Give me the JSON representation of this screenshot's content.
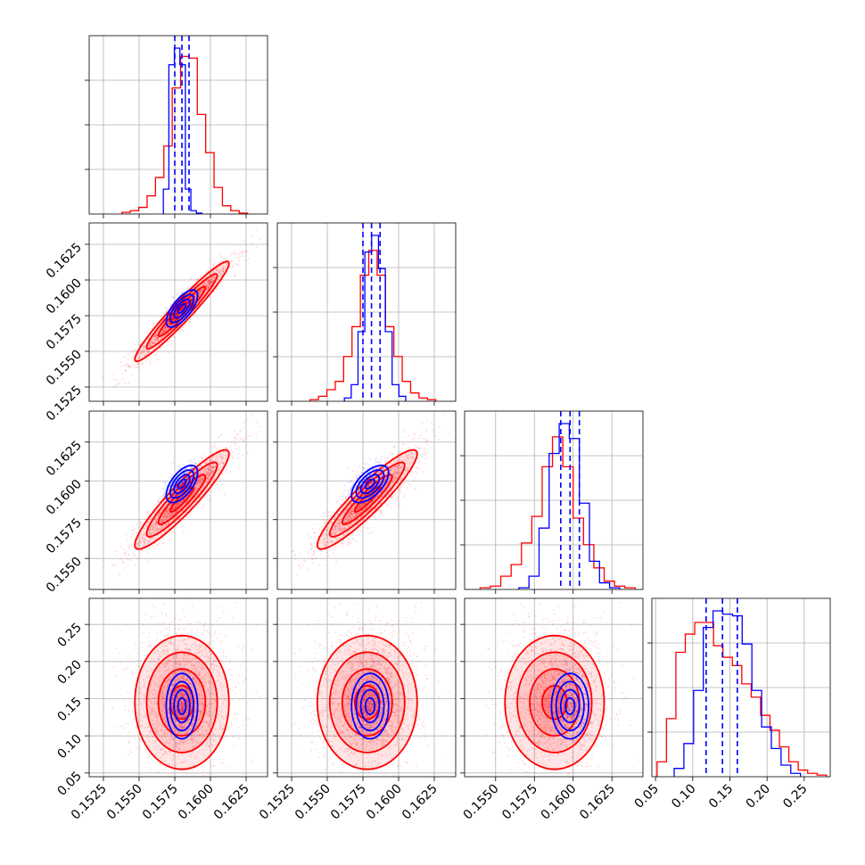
{
  "chart_data": {
    "type": "corner",
    "title": "",
    "colors": {
      "red": "#ff0000",
      "blue": "#0000ff",
      "grid": "#b0b0b0",
      "axis": "#000000"
    },
    "grid": true,
    "series": [
      {
        "color": "red",
        "means": [
          0.158,
          0.1578,
          0.1588,
          0.145
        ],
        "stds": [
          0.00165,
          0.00175,
          0.0016,
          0.045
        ],
        "corr": [
          [
            1.0,
            0.96,
            0.92,
            0.0
          ],
          [
            0.96,
            1.0,
            0.92,
            0.0
          ],
          [
            0.92,
            0.92,
            1.0,
            0.0
          ],
          [
            0.0,
            0.0,
            0.0,
            1.0
          ]
        ],
        "hist_values": [
          [
            1,
            2,
            4,
            11,
            22,
            41,
            76,
            95,
            94,
            60,
            37,
            16,
            5,
            2,
            0.5
          ],
          [
            1,
            3,
            7,
            12,
            27,
            45,
            76,
            91,
            76,
            45,
            27,
            12,
            5,
            2,
            1
          ],
          [
            1,
            2,
            8,
            15,
            28,
            44,
            74,
            92,
            74,
            43,
            27,
            13,
            5,
            2,
            1
          ],
          [
            9,
            35,
            75,
            86,
            93,
            93,
            79,
            72,
            67,
            56,
            48,
            37,
            28,
            18,
            9,
            4,
            2,
            1
          ]
        ]
      },
      {
        "color": "blue",
        "means": [
          0.158,
          0.158,
          0.1598,
          0.14
        ],
        "stds": [
          0.00055,
          0.00065,
          0.0006,
          0.022
        ],
        "corr": [
          [
            1.0,
            0.7,
            0.6,
            0.0
          ],
          [
            0.7,
            1.0,
            0.6,
            0.0
          ],
          [
            0.6,
            0.6,
            1.0,
            0.0
          ],
          [
            0.0,
            0.0,
            0.0,
            1.0
          ]
        ],
        "quantiles": [
          [
            0.1575,
            0.158,
            0.1585
          ],
          [
            0.1575,
            0.1581,
            0.1587
          ],
          [
            0.1592,
            0.1598,
            0.1604
          ],
          [
            0.118,
            0.14,
            0.16
          ]
        ],
        "hist_values": [
          [
            15,
            90,
            100,
            90,
            15,
            2,
            0.5
          ],
          [
            2,
            10,
            42,
            90,
            100,
            80,
            42,
            10,
            3
          ],
          [
            1,
            8,
            37,
            82,
            100,
            91,
            52,
            17,
            4,
            1
          ],
          [
            5,
            20,
            52,
            90,
            100,
            98,
            97,
            80,
            52,
            30,
            17,
            7,
            2
          ]
        ]
      }
    ],
    "hist_bins": [
      [
        0.1538,
        0.1626
      ],
      [
        0.1538,
        0.1626
      ],
      [
        0.154,
        0.164
      ],
      [
        0.052,
        0.28
      ]
    ],
    "hist_bins_blue": [
      [
        0.1567,
        0.1594
      ],
      [
        0.1562,
        0.1605
      ],
      [
        0.1565,
        0.163
      ],
      [
        0.075,
        0.245
      ]
    ],
    "axes": [
      {
        "range": [
          0.1515,
          0.164
        ],
        "ticks": [
          0.1525,
          0.155,
          0.1575,
          0.16,
          0.1625
        ],
        "tick_labels": [
          "0.1525",
          "0.1550",
          "0.1575",
          "0.1600",
          "0.1625"
        ]
      },
      {
        "range": [
          0.1515,
          0.164
        ],
        "ticks": [
          0.1525,
          0.155,
          0.1575,
          0.16,
          0.1625
        ],
        "tick_labels": [
          "0.1525",
          "0.1550",
          "0.1575",
          "0.1600",
          "0.1625"
        ]
      },
      {
        "range": [
          0.153,
          0.1645
        ],
        "ticks": [
          0.155,
          0.1575,
          0.16,
          0.1625
        ],
        "tick_labels": [
          "0.1550",
          "0.1575",
          "0.1600",
          "0.1625"
        ]
      },
      {
        "range": [
          0.045,
          0.285
        ],
        "ticks": [
          0.05,
          0.1,
          0.15,
          0.2,
          0.25
        ],
        "tick_labels": [
          "0.05",
          "0.10",
          "0.15",
          "0.20",
          "0.25"
        ]
      }
    ]
  }
}
